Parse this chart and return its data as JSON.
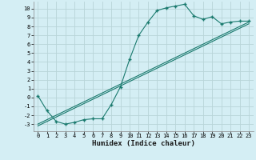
{
  "xlabel": "Humidex (Indice chaleur)",
  "bg_color": "#d4eef4",
  "grid_color": "#b8d4d8",
  "line_color": "#1a7a6e",
  "x_ticks": [
    0,
    1,
    2,
    3,
    4,
    5,
    6,
    7,
    8,
    9,
    10,
    11,
    12,
    13,
    14,
    15,
    16,
    17,
    18,
    19,
    20,
    21,
    22,
    23
  ],
  "y_ticks": [
    -3,
    -2,
    -1,
    0,
    1,
    2,
    3,
    4,
    5,
    6,
    7,
    8,
    9,
    10
  ],
  "xlim": [
    -0.5,
    23.5
  ],
  "ylim": [
    -3.8,
    10.8
  ],
  "curve1_x": [
    0,
    1,
    2,
    3,
    4,
    5,
    6,
    7,
    8,
    9,
    10,
    11,
    12,
    13,
    14,
    15,
    16,
    17,
    18,
    19,
    20,
    21,
    22,
    23
  ],
  "curve1_y": [
    0.2,
    -1.5,
    -2.7,
    -3.0,
    -2.8,
    -2.5,
    -2.4,
    -2.4,
    -0.8,
    1.2,
    4.3,
    7.0,
    8.5,
    9.8,
    10.1,
    10.3,
    10.5,
    9.2,
    8.8,
    9.1,
    8.3,
    8.5,
    8.6,
    8.6
  ],
  "curve2_x": [
    0,
    1,
    2,
    3,
    4,
    5,
    6,
    7,
    8,
    9,
    10,
    11,
    12,
    13,
    14,
    15,
    16,
    17,
    18,
    19,
    20,
    21,
    22,
    23
  ],
  "curve2_y": [
    -3.0,
    -2.5,
    -2.0,
    -1.5,
    -1.0,
    -0.5,
    0.0,
    0.5,
    1.0,
    1.5,
    2.0,
    2.5,
    3.0,
    3.5,
    4.0,
    4.5,
    5.0,
    5.5,
    6.0,
    6.5,
    7.0,
    7.5,
    8.0,
    8.5
  ],
  "curve3_x": [
    0,
    1,
    2,
    3,
    4,
    5,
    6,
    7,
    8,
    9,
    10,
    11,
    12,
    13,
    14,
    15,
    16,
    17,
    18,
    19,
    20,
    21,
    22,
    23
  ],
  "curve3_y": [
    -3.2,
    -2.7,
    -2.2,
    -1.7,
    -1.2,
    -0.7,
    -0.2,
    0.3,
    0.8,
    1.3,
    1.8,
    2.3,
    2.8,
    3.3,
    3.8,
    4.3,
    4.8,
    5.3,
    5.8,
    6.3,
    6.8,
    7.3,
    7.8,
    8.3
  ],
  "tick_fontsize": 5.0,
  "xlabel_fontsize": 6.5
}
